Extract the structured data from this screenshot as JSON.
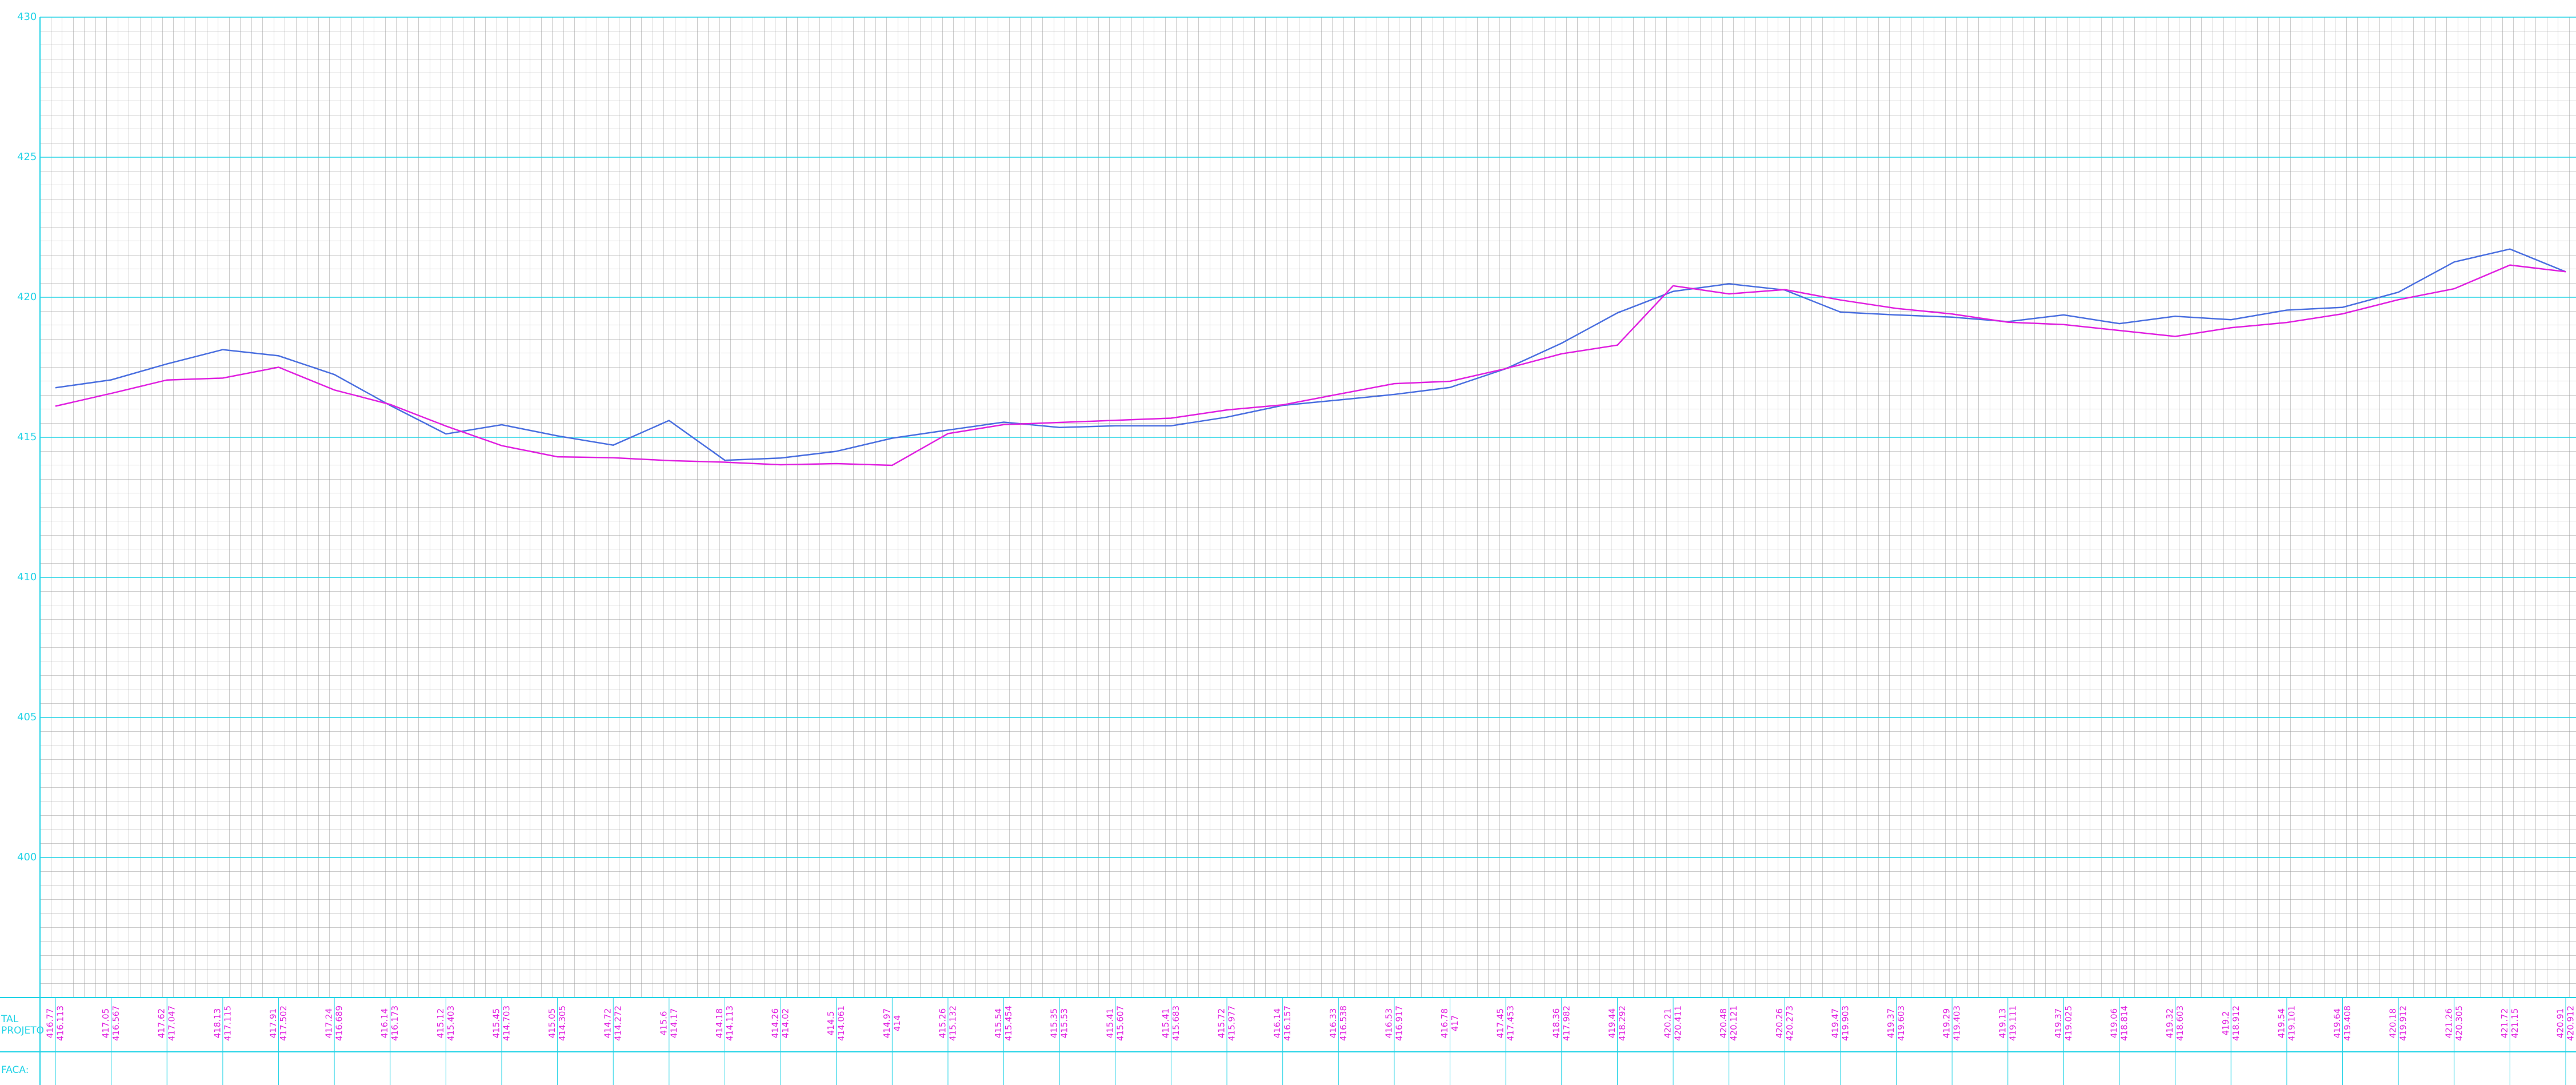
{
  "chart_data": {
    "type": "line",
    "ylim": [
      395,
      430
    ],
    "yticks": [
      400,
      405,
      410,
      415,
      420,
      425,
      430
    ],
    "row_labels": [
      "TAL",
      "PROJETO",
      "FACA:"
    ],
    "series": [
      {
        "color": "#4a6fe0",
        "values": [
          416.77,
          417.05,
          417.62,
          418.13,
          417.91,
          417.24,
          416.14,
          415.12,
          415.45,
          415.05,
          414.72,
          415.6,
          414.18,
          414.26,
          414.5,
          414.97,
          415.26,
          415.54,
          415.35,
          415.41,
          415.41,
          415.72,
          416.14,
          416.33,
          416.53,
          416.78,
          417.45,
          418.36,
          419.44,
          420.21,
          420.48,
          420.26,
          419.47,
          419.37,
          419.29,
          419.13,
          419.37,
          419.06,
          419.32,
          419.2,
          419.54,
          419.64,
          420.18,
          421.26,
          421.72,
          420.91
        ]
      },
      {
        "color": "#e020e0",
        "values": [
          416.113,
          416.567,
          417.047,
          417.115,
          417.502,
          416.689,
          416.173,
          415.403,
          414.703,
          414.305,
          414.272,
          414.17,
          414.113,
          414.02,
          414.061,
          414.0,
          415.132,
          415.454,
          415.53,
          415.607,
          415.683,
          415.977,
          416.157,
          416.538,
          416.917,
          417.0,
          417.453,
          417.982,
          418.292,
          420.411,
          420.121,
          420.273,
          419.903,
          419.603,
          419.403,
          419.111,
          419.025,
          418.814,
          418.603,
          418.912,
          419.101,
          419.408,
          419.912,
          420.305,
          421.15,
          420.912
        ]
      }
    ]
  }
}
